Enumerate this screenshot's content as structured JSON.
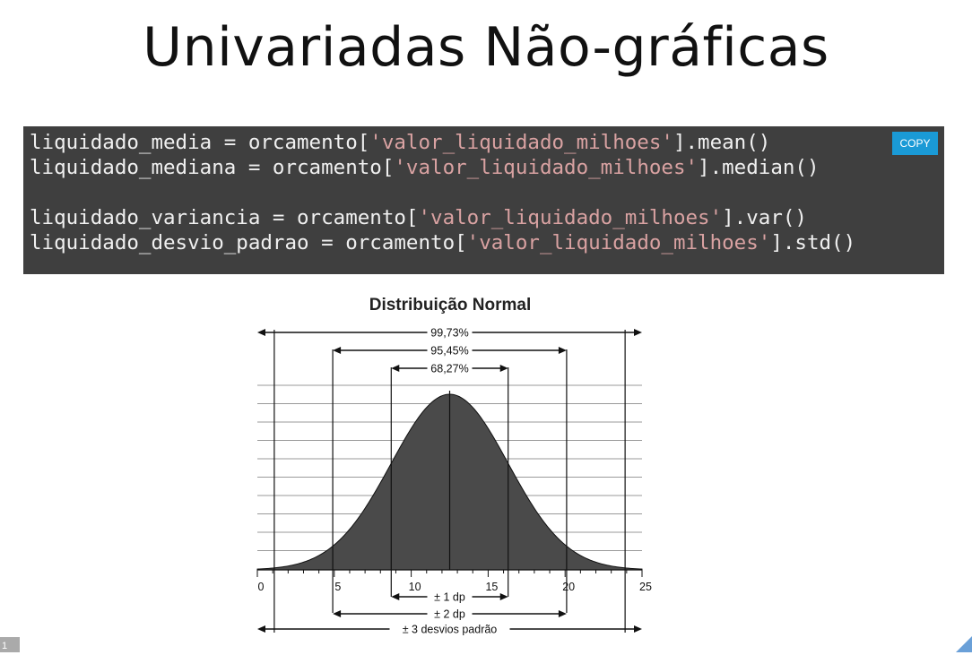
{
  "slide": {
    "title": "Univariadas Não-gráficas",
    "number": "1"
  },
  "code": {
    "copy_label": "COPY",
    "lines": [
      {
        "pre": "liquidado_media = orcamento[",
        "str": "'valor_liquidado_milhoes'",
        "post": "].mean()"
      },
      {
        "pre": "liquidado_mediana = orcamento[",
        "str": "'valor_liquidado_milhoes'",
        "post": "].median()"
      },
      {
        "pre": "",
        "str": "",
        "post": ""
      },
      {
        "pre": "liquidado_variancia = orcamento[",
        "str": "'valor_liquidado_milhoes'",
        "post": "].var()"
      },
      {
        "pre": "liquidado_desvio_padrao = orcamento[",
        "str": "'valor_liquidado_milhoes'",
        "post": "].std()"
      }
    ]
  },
  "figure": {
    "title": "Distribuição Normal",
    "mean": 12.5,
    "sd": 3.8,
    "xlim": [
      0,
      25
    ],
    "ticks": [
      "0",
      "5",
      "10",
      "15",
      "20",
      "25"
    ],
    "tick_values": [
      0,
      5,
      10,
      15,
      20,
      25
    ],
    "top_ranges": [
      {
        "label": "99,73%",
        "k": 3
      },
      {
        "label": "95,45%",
        "k": 2
      },
      {
        "label": "68,27%",
        "k": 1
      }
    ],
    "bottom_ranges": [
      {
        "label": "± 1 dp",
        "k": 1
      },
      {
        "label": "± 2 dp",
        "k": 2
      },
      {
        "label": "± 3 desvios padrão",
        "k": 3
      }
    ],
    "colors": {
      "fill": "#4a4a4a",
      "line": "#111111",
      "grid": "#9a9a9a"
    }
  }
}
